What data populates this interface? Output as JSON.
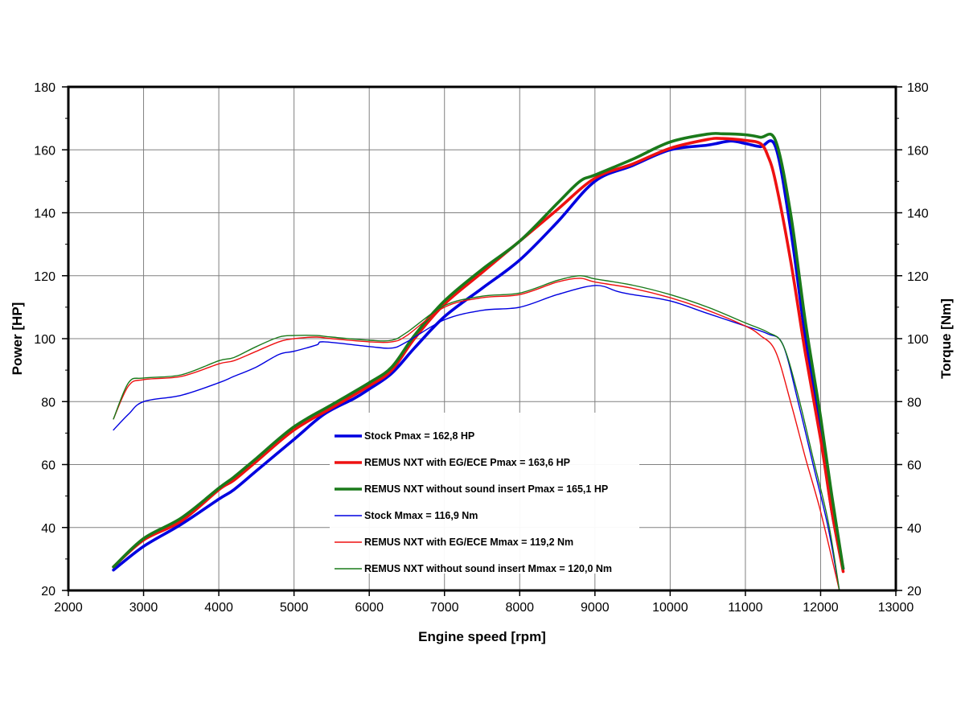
{
  "chart_data": {
    "type": "line",
    "xlabel": "Engine speed [rpm]",
    "ylabel_left": "Power [HP]",
    "ylabel_right": "Torque [Nm]",
    "xlim": [
      2000,
      13000
    ],
    "ylim": [
      20,
      180
    ],
    "y2lim": [
      20,
      180
    ],
    "x_ticks": [
      "2000",
      "3000",
      "4000",
      "5000",
      "6000",
      "7000",
      "8000",
      "9000",
      "10000",
      "11000",
      "12000",
      "13000"
    ],
    "y_ticks": [
      "20",
      "40",
      "60",
      "80",
      "100",
      "120",
      "140",
      "160",
      "180"
    ],
    "grid": true,
    "legend_position": "center-bottom",
    "series": [
      {
        "name": "Stock Pmax = 162,8 HP",
        "color": "#0000e0",
        "thick": true,
        "axis": "left",
        "points": [
          [
            2600,
            26.5
          ],
          [
            3000,
            34
          ],
          [
            3500,
            41
          ],
          [
            4000,
            49
          ],
          [
            4200,
            52
          ],
          [
            4500,
            58
          ],
          [
            5000,
            68
          ],
          [
            5400,
            76
          ],
          [
            5800,
            81
          ],
          [
            6000,
            84
          ],
          [
            6300,
            89
          ],
          [
            6600,
            97
          ],
          [
            7000,
            107
          ],
          [
            7500,
            116
          ],
          [
            8000,
            125
          ],
          [
            8500,
            137
          ],
          [
            9000,
            150
          ],
          [
            9500,
            155
          ],
          [
            10000,
            160
          ],
          [
            10500,
            161.5
          ],
          [
            10800,
            162.8
          ],
          [
            11000,
            162
          ],
          [
            11200,
            161
          ],
          [
            11400,
            161
          ],
          [
            11600,
            135
          ],
          [
            11800,
            100
          ],
          [
            12000,
            70
          ],
          [
            12150,
            45
          ],
          [
            12300,
            27
          ]
        ]
      },
      {
        "name": "REMUS NXT with EG/ECE Pmax = 163,6 HP",
        "color": "#ee1111",
        "thick": true,
        "axis": "left",
        "points": [
          [
            2600,
            27.5
          ],
          [
            3000,
            36
          ],
          [
            3500,
            42
          ],
          [
            4000,
            52
          ],
          [
            4200,
            55
          ],
          [
            4500,
            61
          ],
          [
            5000,
            71
          ],
          [
            5500,
            78
          ],
          [
            6000,
            85
          ],
          [
            6300,
            90
          ],
          [
            6600,
            100
          ],
          [
            7000,
            111
          ],
          [
            7500,
            121
          ],
          [
            8000,
            131
          ],
          [
            8500,
            141
          ],
          [
            9000,
            151
          ],
          [
            9500,
            155.5
          ],
          [
            10000,
            160.5
          ],
          [
            10500,
            163.3
          ],
          [
            10700,
            163.6
          ],
          [
            11000,
            163
          ],
          [
            11200,
            162
          ],
          [
            11300,
            158
          ],
          [
            11400,
            150
          ],
          [
            11600,
            125
          ],
          [
            11800,
            95
          ],
          [
            12000,
            68
          ],
          [
            12150,
            45
          ],
          [
            12300,
            26
          ]
        ]
      },
      {
        "name": "REMUS NXT without sound insert Pmax = 165,1 HP",
        "color": "#1a7a1a",
        "thick": true,
        "axis": "left",
        "points": [
          [
            2600,
            27.5
          ],
          [
            3000,
            36.5
          ],
          [
            3500,
            43
          ],
          [
            4000,
            52.5
          ],
          [
            4200,
            56
          ],
          [
            4500,
            62
          ],
          [
            5000,
            72
          ],
          [
            5500,
            79
          ],
          [
            6000,
            86
          ],
          [
            6300,
            91
          ],
          [
            6600,
            101
          ],
          [
            7000,
            112
          ],
          [
            7500,
            122
          ],
          [
            8000,
            131
          ],
          [
            8500,
            143
          ],
          [
            8800,
            150
          ],
          [
            9000,
            152
          ],
          [
            9500,
            157
          ],
          [
            10000,
            162.5
          ],
          [
            10500,
            165
          ],
          [
            10700,
            165.1
          ],
          [
            11000,
            164.8
          ],
          [
            11200,
            164
          ],
          [
            11400,
            163
          ],
          [
            11600,
            140
          ],
          [
            11800,
            105
          ],
          [
            12000,
            75
          ],
          [
            12150,
            50
          ],
          [
            12300,
            27
          ]
        ]
      },
      {
        "name": "Stock Mmax = 116,9 Nm",
        "color": "#0000e0",
        "thick": false,
        "axis": "right",
        "points": [
          [
            2600,
            71
          ],
          [
            2800,
            76
          ],
          [
            3000,
            80
          ],
          [
            3500,
            82
          ],
          [
            4000,
            86
          ],
          [
            4200,
            88
          ],
          [
            4500,
            91
          ],
          [
            4800,
            95
          ],
          [
            5000,
            96
          ],
          [
            5300,
            98
          ],
          [
            5400,
            99
          ],
          [
            6000,
            97.5
          ],
          [
            6300,
            97
          ],
          [
            6500,
            99
          ],
          [
            7000,
            106
          ],
          [
            7500,
            109
          ],
          [
            8000,
            110
          ],
          [
            8500,
            114
          ],
          [
            9000,
            116.9
          ],
          [
            9300,
            115
          ],
          [
            9500,
            114
          ],
          [
            10000,
            112
          ],
          [
            10500,
            108
          ],
          [
            11000,
            104
          ],
          [
            11300,
            101.5
          ],
          [
            11500,
            98
          ],
          [
            11700,
            80
          ],
          [
            11900,
            60
          ],
          [
            12100,
            40
          ],
          [
            12250,
            20
          ]
        ]
      },
      {
        "name": "REMUS NXT with  EG/ECE Mmax = 119,2 Nm",
        "color": "#ee1111",
        "thick": false,
        "axis": "right",
        "points": [
          [
            2600,
            74.5
          ],
          [
            2800,
            85
          ],
          [
            3000,
            87
          ],
          [
            3500,
            88
          ],
          [
            4000,
            92
          ],
          [
            4200,
            93
          ],
          [
            4500,
            96
          ],
          [
            4800,
            99
          ],
          [
            5000,
            100
          ],
          [
            5300,
            100.5
          ],
          [
            5500,
            100
          ],
          [
            6000,
            99
          ],
          [
            6300,
            99
          ],
          [
            6500,
            101
          ],
          [
            7000,
            110
          ],
          [
            7500,
            113
          ],
          [
            8000,
            114
          ],
          [
            8500,
            118
          ],
          [
            8800,
            119.2
          ],
          [
            9000,
            118
          ],
          [
            9500,
            116
          ],
          [
            10000,
            113
          ],
          [
            10500,
            109
          ],
          [
            11000,
            104
          ],
          [
            11200,
            101
          ],
          [
            11400,
            96
          ],
          [
            11600,
            80
          ],
          [
            11800,
            62
          ],
          [
            12000,
            45
          ],
          [
            12250,
            20
          ]
        ]
      },
      {
        "name": "REMUS NXT without sound insert Mmax = 120,0 Nm",
        "color": "#1a7a1a",
        "thick": false,
        "axis": "right",
        "points": [
          [
            2600,
            74.5
          ],
          [
            2800,
            86
          ],
          [
            3000,
            87.5
          ],
          [
            3500,
            88.5
          ],
          [
            4000,
            93
          ],
          [
            4200,
            94
          ],
          [
            4500,
            97.5
          ],
          [
            4800,
            100.5
          ],
          [
            5000,
            101
          ],
          [
            5300,
            101
          ],
          [
            5500,
            100.5
          ],
          [
            6000,
            99.5
          ],
          [
            6300,
            99.5
          ],
          [
            6500,
            102
          ],
          [
            7000,
            110.5
          ],
          [
            7500,
            113.5
          ],
          [
            8000,
            114.5
          ],
          [
            8500,
            118.5
          ],
          [
            8800,
            120
          ],
          [
            9000,
            119
          ],
          [
            9500,
            117
          ],
          [
            10000,
            114
          ],
          [
            10500,
            110
          ],
          [
            11000,
            105
          ],
          [
            11300,
            102
          ],
          [
            11500,
            98
          ],
          [
            11700,
            82
          ],
          [
            11900,
            62
          ],
          [
            12100,
            42
          ],
          [
            12250,
            20
          ]
        ]
      }
    ]
  }
}
